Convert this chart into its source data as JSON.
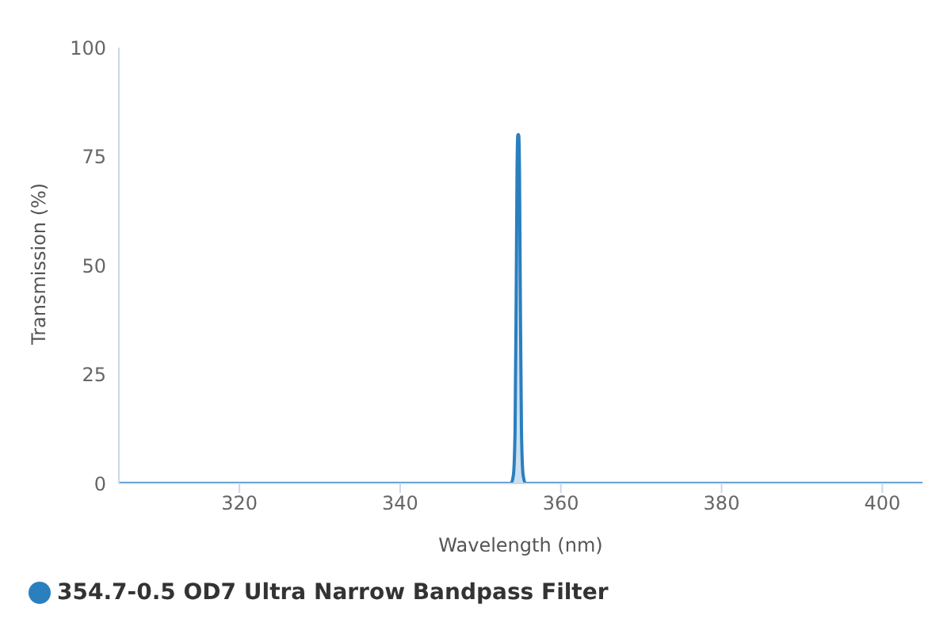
{
  "chart_data": {
    "type": "area",
    "xlabel": "Wavelength (nm)",
    "ylabel": "Transmission (%)",
    "x": [
      305,
      340,
      353.8,
      354.1,
      354.3,
      354.45,
      354.55,
      354.65,
      354.75,
      354.85,
      354.95,
      355.1,
      355.3,
      355.6,
      370,
      405
    ],
    "series": [
      {
        "name": "354.7-0.5 OD7 Ultra Narrow Bandpass Filter",
        "color": "#2a7fbf",
        "values": [
          0,
          0,
          0,
          2,
          12,
          45,
          72,
          80,
          80,
          72,
          45,
          12,
          2,
          0,
          0,
          0
        ]
      }
    ],
    "xlim": [
      305,
      405
    ],
    "xticks": [
      320,
      340,
      360,
      380,
      400
    ],
    "ylim": [
      0,
      100
    ],
    "yticks": [
      0,
      25,
      50,
      75,
      100
    ],
    "legend": "bottom left"
  }
}
